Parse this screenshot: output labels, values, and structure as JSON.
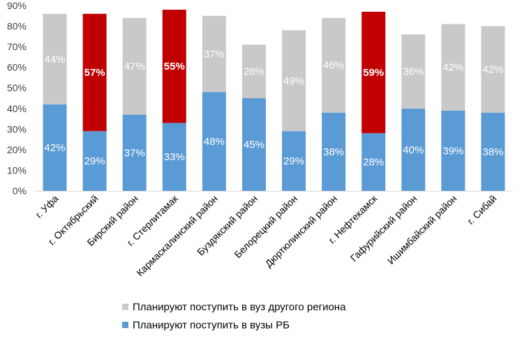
{
  "chart_data": {
    "type": "bar",
    "stacked": true,
    "ylim": [
      0,
      90
    ],
    "y_ticks": [
      "0%",
      "10%",
      "20%",
      "30%",
      "40%",
      "50%",
      "60%",
      "70%",
      "80%",
      "90%"
    ],
    "categories": [
      "г. Уфа",
      "г. Октябрьский",
      "Бирский район",
      "г. Стерлитамак",
      "Кармаскалинский район",
      "Буздякский район",
      "Белорецкий район",
      "Дюртюлинский район",
      "г. Нефтекамск",
      "Гафурийский район",
      "Ишимбайский район",
      "г. Сибай"
    ],
    "series": [
      {
        "name": "Планируют поступить в вузы РБ",
        "color": "#5b9bd5",
        "values": [
          42,
          29,
          37,
          33,
          48,
          45,
          29,
          38,
          28,
          40,
          39,
          38
        ]
      },
      {
        "name": "Планируют поступить в вуз другого региона",
        "color": "#c9c9c9",
        "highlight_color": "#c00000",
        "highlighted": [
          false,
          true,
          false,
          true,
          false,
          false,
          false,
          false,
          true,
          false,
          false,
          false
        ],
        "values": [
          44,
          57,
          47,
          55,
          37,
          26,
          49,
          46,
          59,
          36,
          42,
          42
        ]
      }
    ],
    "legend": {
      "placement": "bottom",
      "entries": [
        {
          "label": "Планируют поступить в вуз другого региона",
          "color": "#c9c9c9"
        },
        {
          "label": "Планируют поступить в вузы РБ",
          "color": "#5b9bd5"
        }
      ]
    },
    "grid": false
  }
}
